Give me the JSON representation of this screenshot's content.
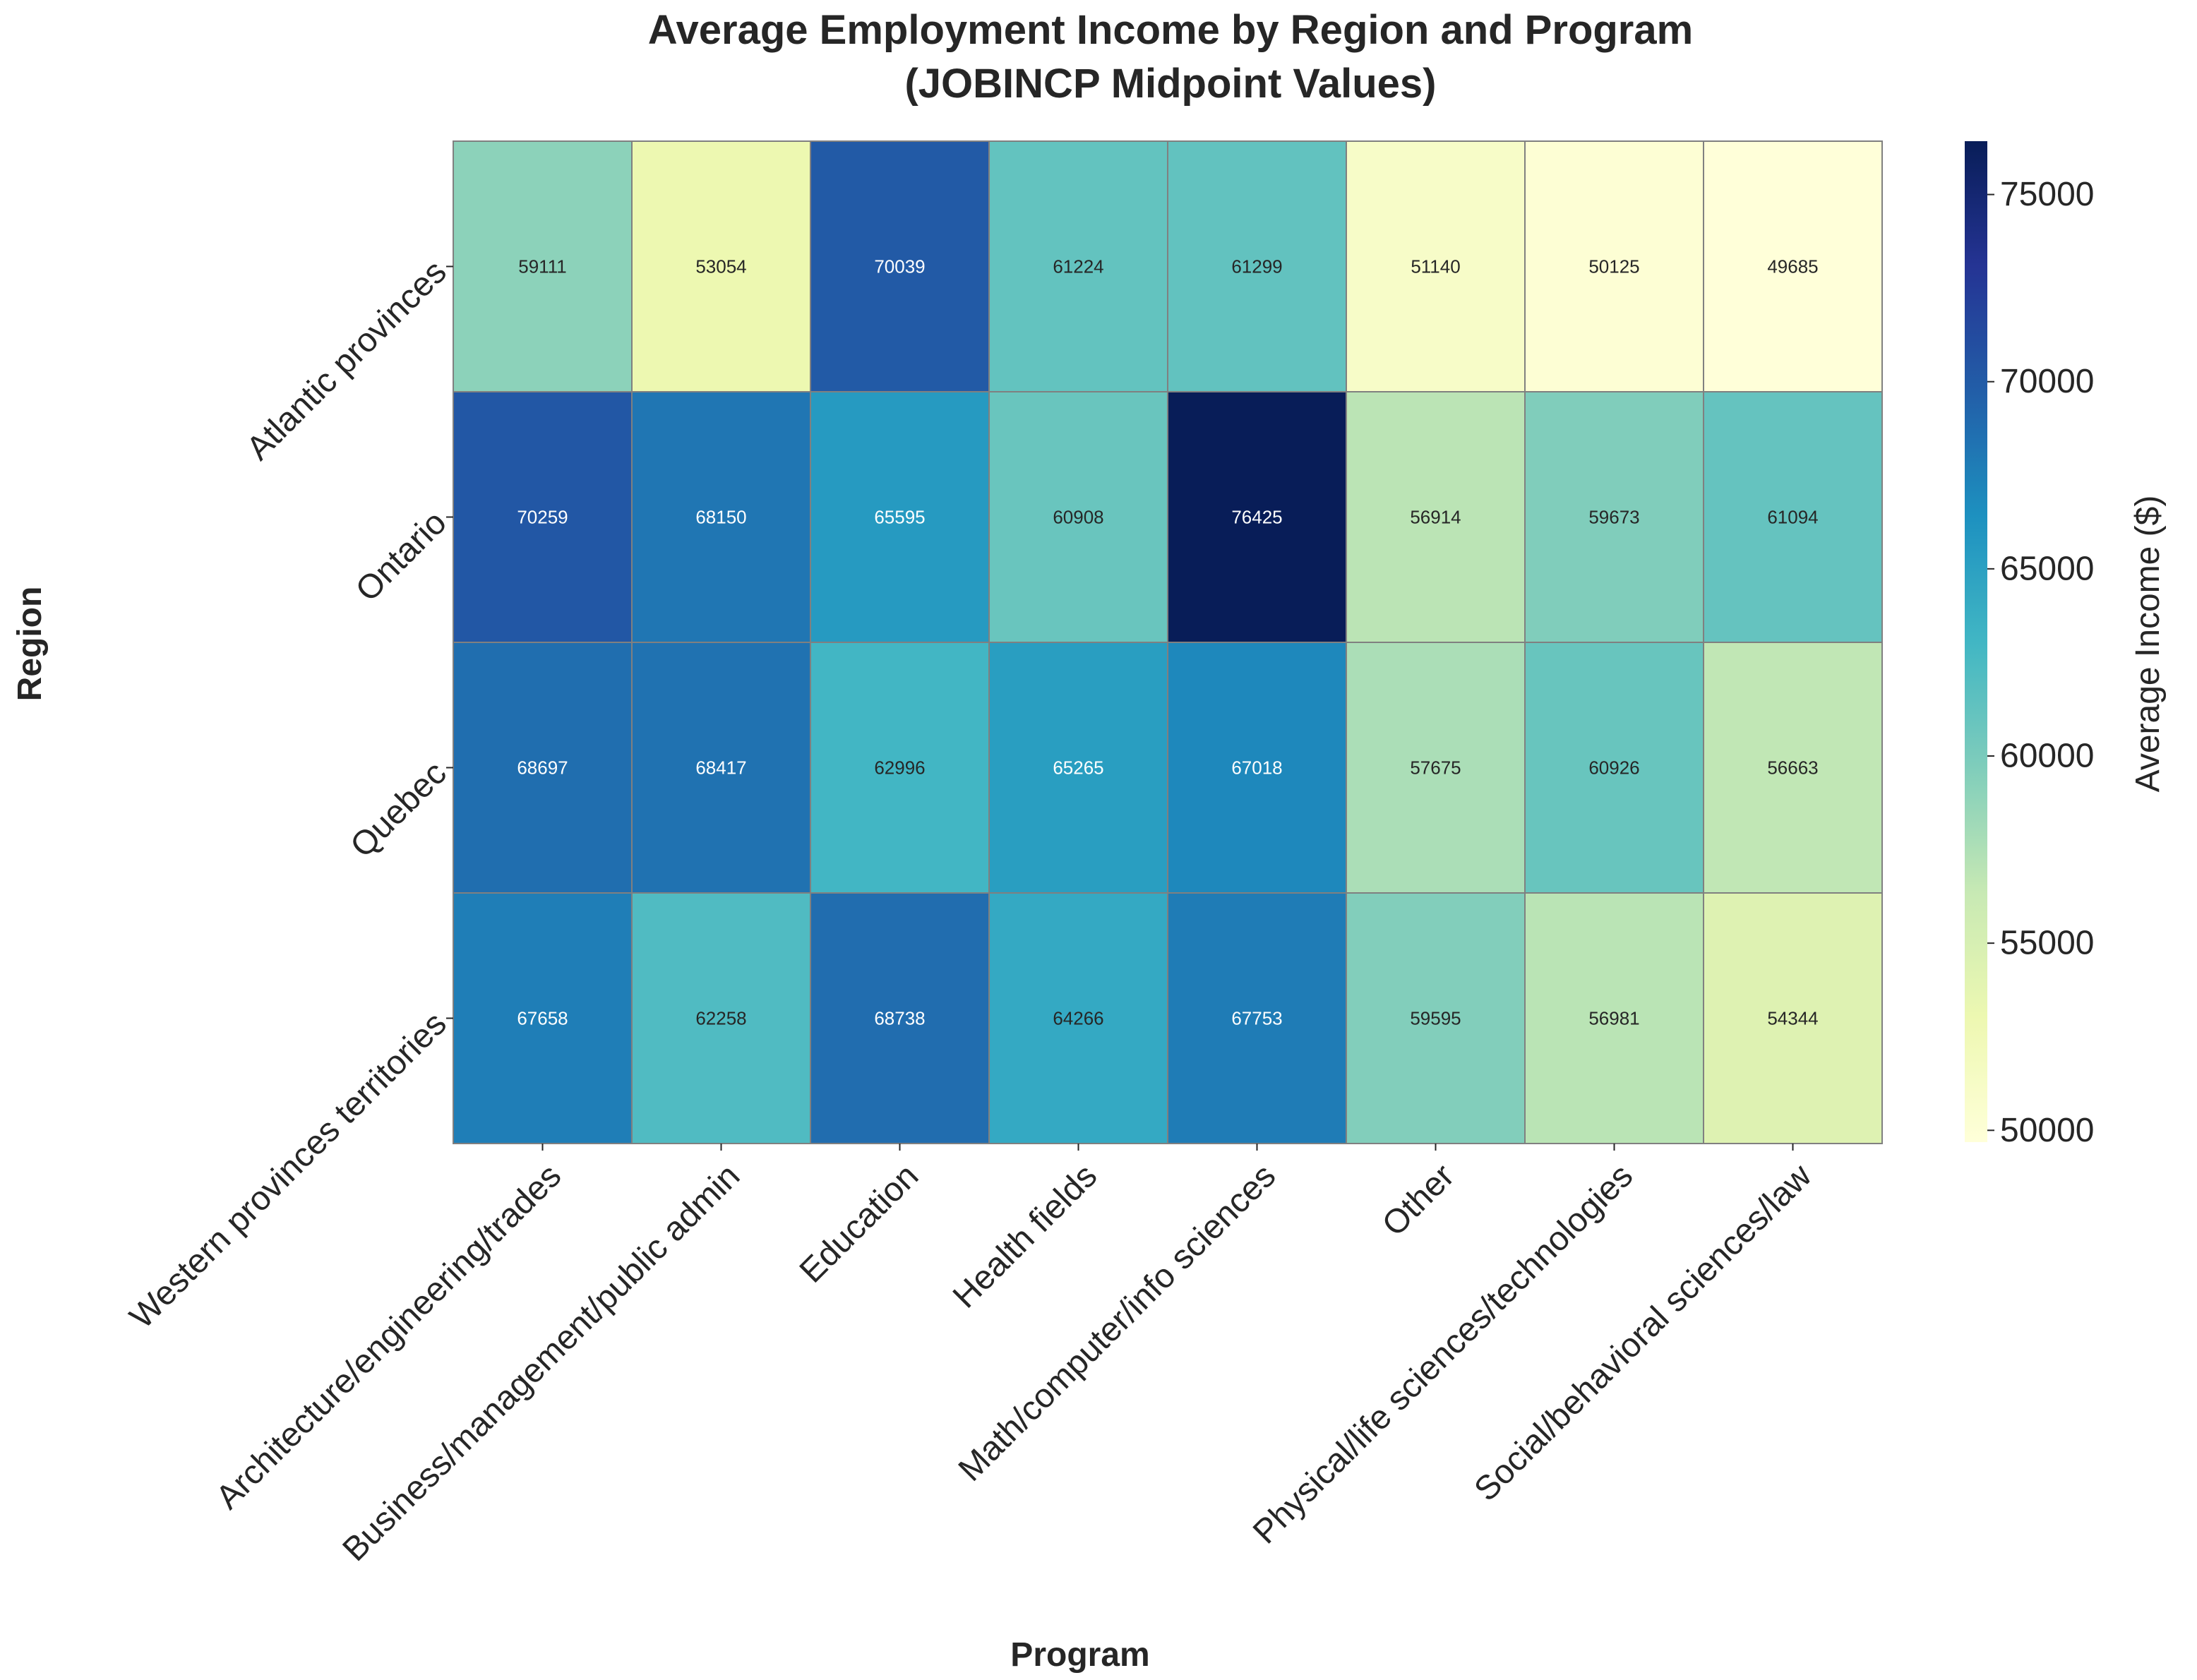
{
  "chart_data": {
    "type": "heatmap",
    "title_lines": [
      "Average Employment Income by Region and Program",
      "(JOBINCP Midpoint Values)"
    ],
    "xlabel": "Program",
    "ylabel": "Region",
    "x_categories": [
      "Architecture/engineering/trades",
      "Business/management/public admin",
      "Education",
      "Health fields",
      "Math/computer/info sciences",
      "Other",
      "Physical/life sciences/technologies",
      "Social/behavioral sciences/law"
    ],
    "y_categories": [
      "Atlantic provinces",
      "Ontario",
      "Quebec",
      "Western provinces territories"
    ],
    "values": [
      [
        59111,
        53054,
        70039,
        61224,
        61299,
        51140,
        50125,
        49685
      ],
      [
        70259,
        68150,
        65595,
        60908,
        76425,
        56914,
        59673,
        61094
      ],
      [
        68697,
        68417,
        62996,
        65265,
        67018,
        57675,
        60926,
        56663
      ],
      [
        67658,
        62258,
        68738,
        64266,
        67753,
        59595,
        56981,
        54344
      ]
    ],
    "colorbar": {
      "label": "Average Income ($)",
      "vmin": 49685,
      "vmax": 76425,
      "ticks": [
        50000,
        55000,
        60000,
        65000,
        70000,
        75000
      ],
      "colormap": "YlGnBu"
    }
  }
}
